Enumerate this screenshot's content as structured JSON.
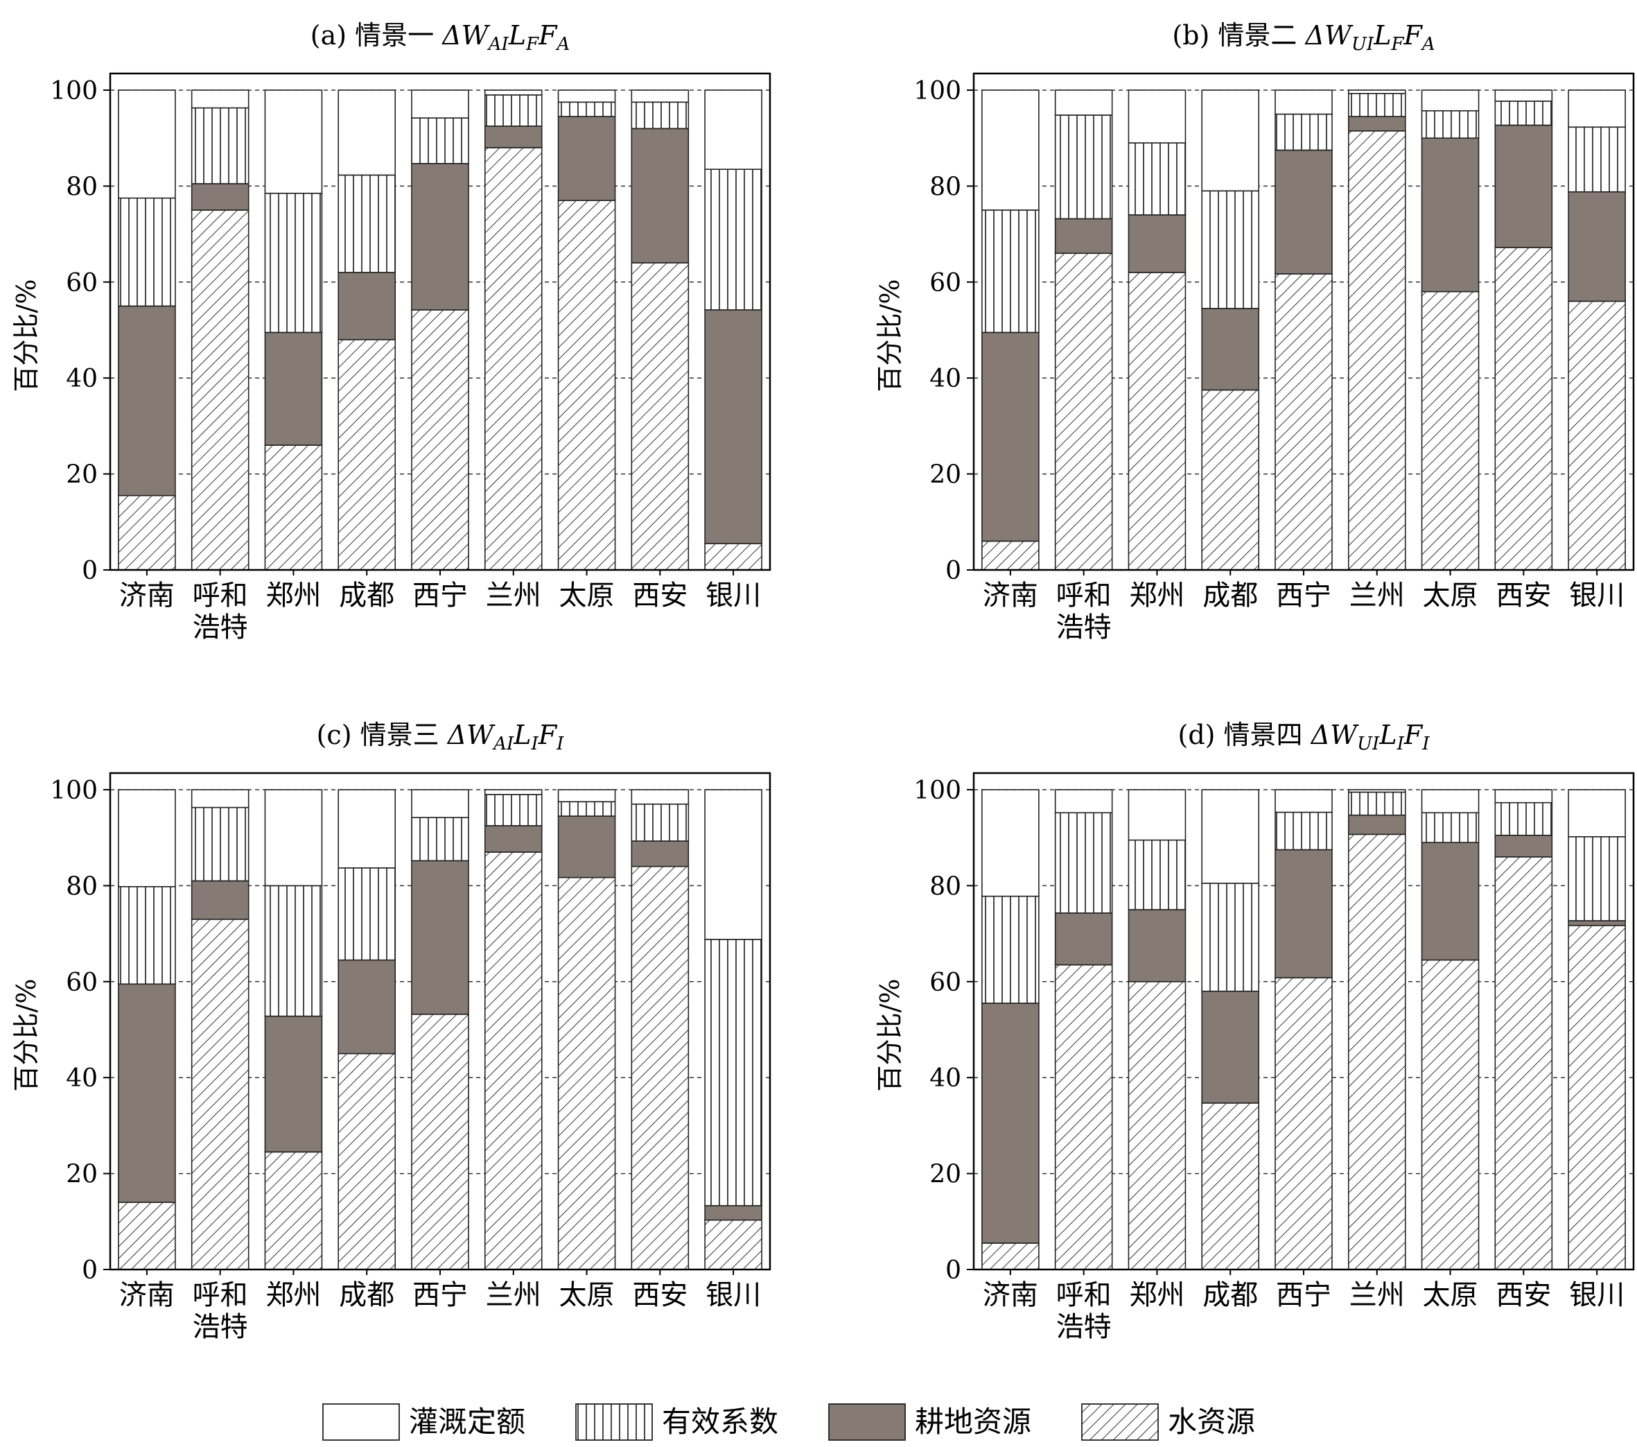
{
  "y_axis_label": "百分比/%",
  "legend": [
    {
      "key": "quota",
      "label": "灌溉定额"
    },
    {
      "key": "coef",
      "label": "有效系数"
    },
    {
      "key": "land",
      "label": "耕地资源"
    },
    {
      "key": "water",
      "label": "水资源"
    }
  ],
  "chart_data": [
    {
      "type": "bar",
      "stacked": true,
      "title": "(a) 情景一",
      "formula": {
        "s1": "A",
        "s2": "AI",
        "s3": "F",
        "s4": "A"
      },
      "categories": [
        [
          "济南"
        ],
        [
          "呼和",
          "浩特"
        ],
        [
          "郑州"
        ],
        [
          "成都"
        ],
        [
          "西宁"
        ],
        [
          "兰州"
        ],
        [
          "太原"
        ],
        [
          "西安"
        ],
        [
          "银川"
        ]
      ],
      "ylim": [
        0,
        100
      ],
      "yticks": [
        0,
        20,
        40,
        60,
        80,
        100
      ],
      "grid": "dashed-horizontal",
      "series": [
        {
          "name": "水资源",
          "values": [
            15.5,
            75.0,
            26.0,
            48.0,
            54.2,
            88.0,
            77.0,
            64.0,
            5.5
          ]
        },
        {
          "name": "耕地资源",
          "values": [
            39.5,
            5.5,
            23.5,
            14.0,
            30.5,
            4.5,
            17.5,
            28.0,
            48.7
          ]
        },
        {
          "name": "有效系数",
          "values": [
            22.5,
            15.8,
            29.0,
            20.3,
            9.5,
            6.5,
            3.0,
            5.5,
            29.3
          ]
        },
        {
          "name": "灌溉定额",
          "values": [
            22.5,
            3.7,
            21.5,
            17.7,
            5.8,
            1.0,
            2.5,
            2.5,
            16.5
          ]
        }
      ]
    },
    {
      "type": "bar",
      "stacked": true,
      "title": "(b) 情景二",
      "formula": {
        "s1": "UI",
        "s2": "",
        "s3": "F",
        "s4": "A"
      },
      "categories": [
        [
          "济南"
        ],
        [
          "呼和",
          "浩特"
        ],
        [
          "郑州"
        ],
        [
          "成都"
        ],
        [
          "西宁"
        ],
        [
          "兰州"
        ],
        [
          "太原"
        ],
        [
          "西安"
        ],
        [
          "银川"
        ]
      ],
      "ylim": [
        0,
        100
      ],
      "yticks": [
        0,
        20,
        40,
        60,
        80,
        100
      ],
      "grid": "dashed-horizontal",
      "series": [
        {
          "name": "水资源",
          "values": [
            6.0,
            66.0,
            62.0,
            37.5,
            61.7,
            91.5,
            58.0,
            67.2,
            56.0
          ]
        },
        {
          "name": "耕地资源",
          "values": [
            43.5,
            7.2,
            12.0,
            17.0,
            25.8,
            3.0,
            32.0,
            25.5,
            22.8
          ]
        },
        {
          "name": "有效系数",
          "values": [
            25.5,
            21.6,
            15.0,
            24.5,
            7.5,
            4.8,
            5.7,
            5.0,
            13.5
          ]
        },
        {
          "name": "灌溉定额",
          "values": [
            25.0,
            5.2,
            11.0,
            21.0,
            5.0,
            0.7,
            4.3,
            2.3,
            7.7
          ]
        }
      ]
    },
    {
      "type": "bar",
      "stacked": true,
      "title": "(c) 情景三",
      "formula": {
        "s1": "AI",
        "s2": "",
        "s3": "I",
        "s4": "I"
      },
      "categories": [
        [
          "济南"
        ],
        [
          "呼和",
          "浩特"
        ],
        [
          "郑州"
        ],
        [
          "成都"
        ],
        [
          "西宁"
        ],
        [
          "兰州"
        ],
        [
          "太原"
        ],
        [
          "西安"
        ],
        [
          "银川"
        ]
      ],
      "ylim": [
        0,
        100
      ],
      "yticks": [
        0,
        20,
        40,
        60,
        80,
        100
      ],
      "grid": "dashed-horizontal",
      "series": [
        {
          "name": "水资源",
          "values": [
            14.0,
            73.0,
            24.5,
            45.0,
            53.2,
            87.0,
            81.7,
            84.0,
            10.3
          ]
        },
        {
          "name": "耕地资源",
          "values": [
            45.5,
            8.0,
            28.3,
            19.5,
            32.0,
            5.5,
            12.8,
            5.3,
            3.0
          ]
        },
        {
          "name": "有效系数",
          "values": [
            20.3,
            15.3,
            27.2,
            19.2,
            9.0,
            6.5,
            3.0,
            7.7,
            55.5
          ]
        },
        {
          "name": "灌溉定额",
          "values": [
            20.2,
            3.7,
            20.0,
            16.3,
            5.8,
            1.0,
            2.5,
            3.0,
            31.2
          ]
        }
      ]
    },
    {
      "type": "bar",
      "stacked": true,
      "title": "(d) 情景四",
      "formula": {
        "s1": "UI",
        "s2": "",
        "s3": "I",
        "s4": "I"
      },
      "categories": [
        [
          "济南"
        ],
        [
          "呼和",
          "浩特"
        ],
        [
          "郑州"
        ],
        [
          "成都"
        ],
        [
          "西宁"
        ],
        [
          "兰州"
        ],
        [
          "太原"
        ],
        [
          "西安"
        ],
        [
          "银川"
        ]
      ],
      "ylim": [
        0,
        100
      ],
      "yticks": [
        0,
        20,
        40,
        60,
        80,
        100
      ],
      "grid": "dashed-horizontal",
      "series": [
        {
          "name": "水资源",
          "values": [
            5.5,
            63.5,
            60.0,
            34.7,
            60.8,
            90.7,
            64.5,
            86.0,
            71.7
          ]
        },
        {
          "name": "耕地资源",
          "values": [
            50.0,
            10.8,
            15.0,
            23.3,
            26.7,
            4.0,
            24.5,
            4.5,
            1.0
          ]
        },
        {
          "name": "有效系数",
          "values": [
            22.3,
            20.9,
            14.5,
            22.5,
            7.8,
            4.8,
            6.2,
            6.8,
            17.5
          ]
        },
        {
          "name": "灌溉定额",
          "values": [
            22.2,
            4.8,
            10.5,
            19.5,
            4.7,
            0.5,
            4.8,
            2.7,
            9.8
          ]
        }
      ]
    }
  ]
}
